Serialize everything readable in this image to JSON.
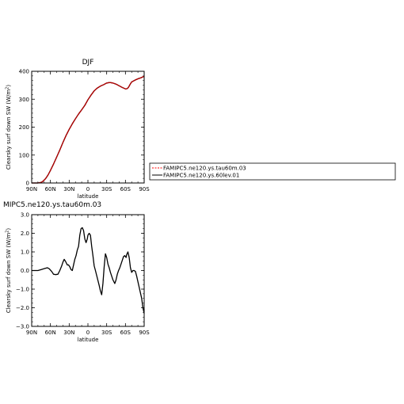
{
  "colors": {
    "series_red": "#b40000",
    "series_black": "#000000",
    "legend_red_dash": "#ff0000"
  },
  "chart_data": [
    {
      "type": "line",
      "title": "DJF",
      "xlabel": "latitude",
      "ylabel": "Clearsky surf down SW (W/m²)",
      "ylabel_main": "Clearsky surf down SW (W/m",
      "ylabel_close": ")",
      "xlim": [
        -90,
        90
      ],
      "ylim": [
        0,
        400
      ],
      "x_tick_values": [
        -90,
        -60,
        -30,
        0,
        30,
        60,
        90
      ],
      "x_tick_labels": [
        "90N",
        "60N",
        "30N",
        "0",
        "30S",
        "60S",
        "90S"
      ],
      "y_tick_values": [
        0,
        100,
        200,
        300,
        400
      ],
      "y_tick_labels": [
        "0",
        "100",
        "200",
        "300",
        "400"
      ],
      "grid": false,
      "legend_placement": "right",
      "series": [
        {
          "name": "FAMIPC5.ne120.ys.tau60m.03",
          "color": "#b40000",
          "x": [
            -90,
            -80,
            -75,
            -72,
            -68,
            -64,
            -60,
            -55,
            -50,
            -45,
            -40,
            -35,
            -30,
            -25,
            -20,
            -15,
            -10,
            -5,
            0,
            5,
            10,
            15,
            20,
            25,
            30,
            35,
            40,
            45,
            50,
            55,
            60,
            63,
            65,
            68,
            70,
            75,
            80,
            85,
            90
          ],
          "y": [
            0,
            0,
            2,
            6,
            15,
            28,
            45,
            68,
            93,
            118,
            145,
            170,
            192,
            212,
            230,
            247,
            262,
            278,
            298,
            315,
            330,
            340,
            347,
            352,
            358,
            360,
            358,
            354,
            348,
            342,
            337,
            338,
            343,
            355,
            362,
            368,
            373,
            377,
            382
          ]
        },
        {
          "name": "FAMIPC5.ne120.ys.60lev.01",
          "color": "#000000",
          "x": [
            -90,
            -80,
            -75,
            -72,
            -68,
            -64,
            -60,
            -55,
            -50,
            -45,
            -40,
            -35,
            -30,
            -25,
            -20,
            -15,
            -10,
            -5,
            0,
            5,
            10,
            15,
            20,
            25,
            30,
            35,
            40,
            45,
            50,
            55,
            60,
            63,
            65,
            68,
            70,
            75,
            80,
            85,
            90
          ],
          "y": [
            0,
            0,
            2,
            6,
            15,
            28,
            45,
            68,
            93,
            118,
            145,
            170,
            192,
            212,
            230,
            247,
            262,
            278,
            298,
            315,
            330,
            340,
            347,
            352,
            358,
            360,
            358,
            354,
            348,
            342,
            337,
            338,
            343,
            355,
            362,
            368,
            373,
            377,
            382
          ]
        }
      ]
    },
    {
      "type": "line",
      "title": "MIPC5.ne120.ys.tau60m.03",
      "xlabel": "latitude",
      "ylabel": "Clearsky surf down SW (W/m²)",
      "ylabel_main": "Clearsky surf down SW (W/m",
      "ylabel_close": ")",
      "xlim": [
        -90,
        90
      ],
      "ylim": [
        -3,
        3
      ],
      "x_tick_values": [
        -90,
        -60,
        -30,
        0,
        30,
        60,
        90
      ],
      "x_tick_labels": [
        "90N",
        "60N",
        "30N",
        "0",
        "30S",
        "60S",
        "90S"
      ],
      "y_tick_values": [
        3,
        2,
        1,
        0,
        -1,
        -2,
        -3
      ],
      "y_tick_labels": [
        "3.0",
        "2.0",
        "1.0",
        "0.0",
        "−1.0",
        "−2.0",
        "−3.0"
      ],
      "grid": false,
      "series": [
        {
          "name": "",
          "color": "#000000",
          "x": [
            -90,
            -85,
            -80,
            -75,
            -70,
            -65,
            -62,
            -58,
            -55,
            -52,
            -48,
            -45,
            -42,
            -40,
            -38,
            -36,
            -33,
            -31,
            -29,
            -27,
            -25,
            -23,
            -21,
            -19,
            -17,
            -15,
            -13,
            -11,
            -9,
            -7,
            -5,
            -3,
            -1,
            0,
            2,
            4,
            6,
            8,
            10,
            12,
            15,
            18,
            20,
            22,
            24,
            26,
            28,
            30,
            32,
            34,
            36,
            38,
            40,
            43,
            45,
            47,
            49,
            51,
            53,
            55,
            57,
            59,
            61,
            62,
            64,
            66,
            68,
            70,
            72,
            74,
            76,
            78,
            80,
            82,
            84,
            86,
            88,
            90
          ],
          "y": [
            0,
            0,
            0,
            0.05,
            0.1,
            0.15,
            0.1,
            -0.05,
            -0.2,
            -0.22,
            -0.2,
            0,
            0.25,
            0.45,
            0.6,
            0.5,
            0.3,
            0.3,
            0.2,
            0.05,
            0,
            0.3,
            0.6,
            0.8,
            1.1,
            1.3,
            1.9,
            2.25,
            2.3,
            2.15,
            1.7,
            1.5,
            1.7,
            1.9,
            2.0,
            1.9,
            1.3,
            0.8,
            0.25,
            0,
            -0.4,
            -0.8,
            -1.1,
            -1.3,
            -0.7,
            0.2,
            0.9,
            0.7,
            0.35,
            0.15,
            -0.1,
            -0.3,
            -0.5,
            -0.7,
            -0.5,
            -0.2,
            0,
            0.15,
            0.35,
            0.55,
            0.75,
            0.8,
            0.7,
            0.85,
            1.0,
            0.7,
            0.15,
            -0.1,
            0,
            0,
            -0.05,
            -0.3,
            -0.6,
            -0.9,
            -1.2,
            -1.5,
            -2.0,
            -2.3
          ]
        }
      ]
    }
  ]
}
